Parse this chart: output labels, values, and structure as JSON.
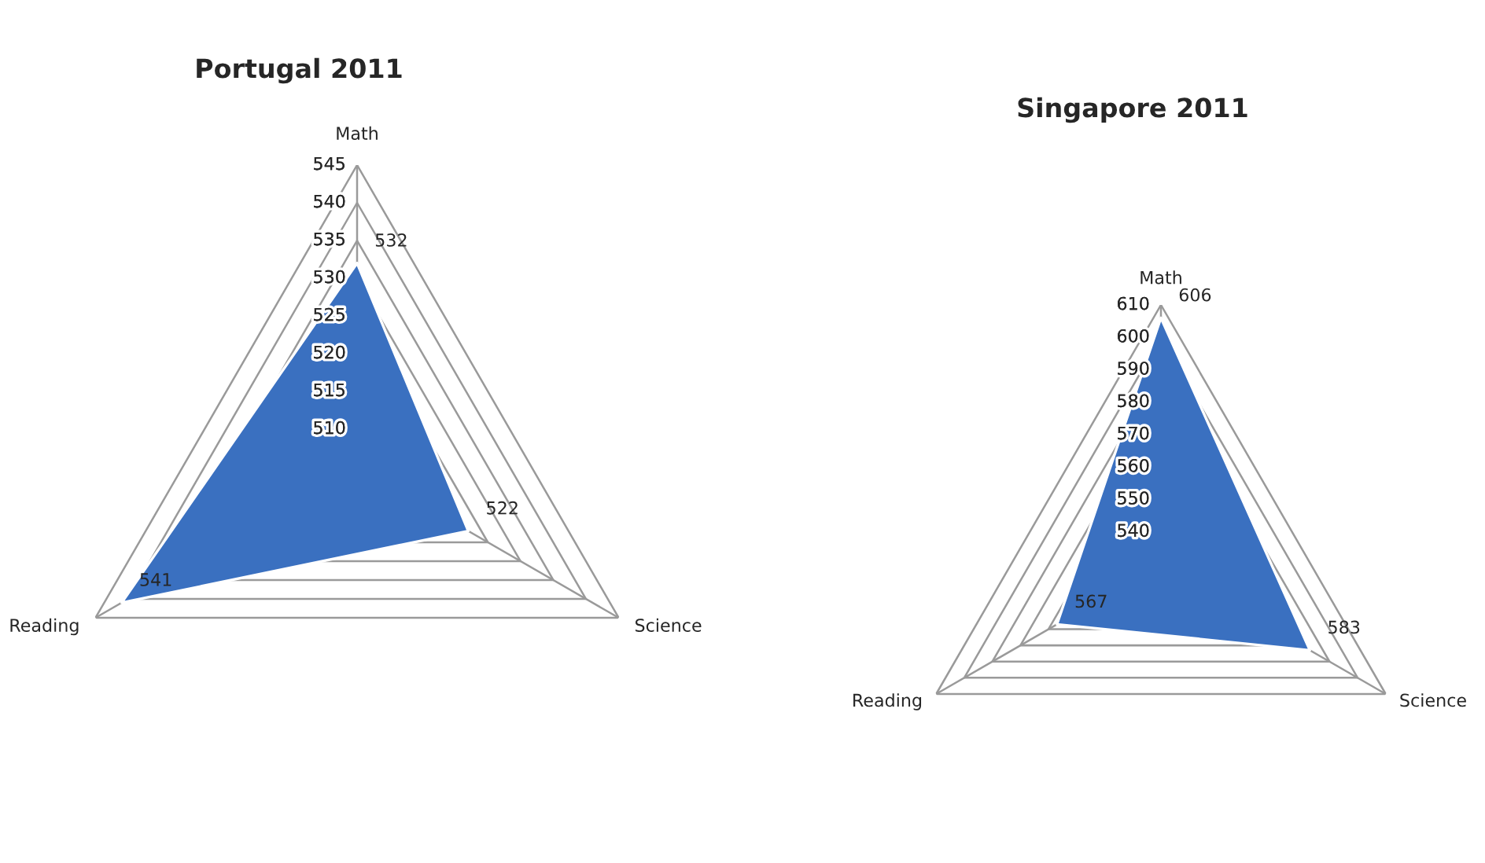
{
  "chart_data": [
    {
      "type": "radar",
      "title": "Portugal 2011",
      "categories": [
        "Math",
        "Science",
        "Reading"
      ],
      "series": [
        {
          "color": "#3a70c0",
          "values": [
            532,
            522,
            541
          ]
        }
      ],
      "ylim": [
        505,
        545
      ],
      "yticks": [
        510,
        515,
        520,
        525,
        530,
        535,
        540,
        545
      ],
      "data_labels": true,
      "grid": true
    },
    {
      "type": "radar",
      "title": "Singapore 2011",
      "categories": [
        "Math",
        "Science",
        "Reading"
      ],
      "series": [
        {
          "color": "#3a70c0",
          "values": [
            606,
            583,
            567
          ]
        }
      ],
      "ylim": [
        530,
        610
      ],
      "yticks": [
        540,
        550,
        560,
        570,
        580,
        590,
        600,
        610
      ],
      "data_labels": true,
      "grid": true
    }
  ]
}
